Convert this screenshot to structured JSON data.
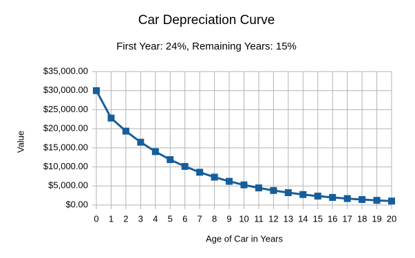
{
  "chart_data": {
    "type": "line",
    "title": "Car Depreciation Curve",
    "subtitle": "First Year: 24%, Remaining Years: 15%",
    "x_label": "Age of Car in Years",
    "y_label": "Value",
    "x": [
      0,
      1,
      2,
      3,
      4,
      5,
      6,
      7,
      8,
      9,
      10,
      11,
      12,
      13,
      14,
      15,
      16,
      17,
      18,
      19,
      20
    ],
    "series": [
      {
        "color": "#165e9b",
        "values": [
          30000,
          22800,
          19380,
          16473,
          14002,
          11902,
          10116,
          8599,
          7309,
          6213,
          5281,
          4489,
          3815,
          3243,
          2757,
          2343,
          1992,
          1693,
          1439,
          1223,
          1040
        ]
      }
    ],
    "xlim": [
      0,
      20
    ],
    "xticks": [
      0,
      1,
      2,
      3,
      4,
      5,
      6,
      7,
      8,
      9,
      10,
      11,
      12,
      13,
      14,
      15,
      16,
      17,
      18,
      19,
      20
    ],
    "ylim": [
      0,
      35000
    ],
    "yticks": [
      {
        "value": 0,
        "label": "$0.00"
      },
      {
        "value": 5000,
        "label": "$5,000.00"
      },
      {
        "value": 10000,
        "label": "$10,000.00"
      },
      {
        "value": 15000,
        "label": "$15,000.00"
      },
      {
        "value": 20000,
        "label": "$20,000.00"
      },
      {
        "value": 25000,
        "label": "$25,000.00"
      },
      {
        "value": 30000,
        "label": "$30,000.00"
      },
      {
        "value": 35000,
        "label": "$35,000.00"
      }
    ],
    "grid": true
  }
}
